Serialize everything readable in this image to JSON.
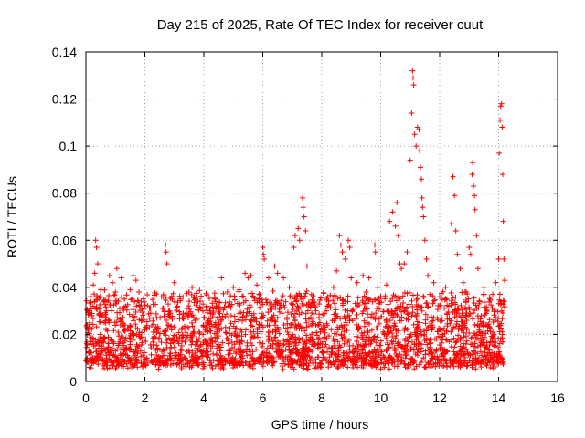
{
  "chart_data": {
    "type": "scatter",
    "title": "Day 215 of 2025, Rate Of TEC Index for receiver cuut",
    "xlabel": "GPS time / hours",
    "ylabel": "ROTI / TECUs",
    "xlim": [
      0,
      16
    ],
    "ylim": [
      0,
      0.14
    ],
    "xticks": [
      0,
      2,
      4,
      6,
      8,
      10,
      12,
      14,
      16
    ],
    "yticks": [
      0,
      0.02,
      0.04,
      0.06,
      0.08,
      0.1,
      0.12,
      0.14
    ],
    "xtick_labels": [
      "0",
      "2",
      "4",
      "6",
      "8",
      "10",
      "12",
      "14",
      "16"
    ],
    "ytick_labels": [
      "0",
      "0.02",
      "0.04",
      "0.06",
      "0.08",
      "0.1",
      "0.12",
      "0.14"
    ],
    "grid": true,
    "marker": "plus",
    "color": "#ff0000",
    "data_range_hours": [
      0,
      14.2
    ],
    "baseline_band": [
      0.005,
      0.035
    ],
    "series": [
      {
        "name": "ROTI",
        "points": [
          [
            0.05,
            0.024
          ],
          [
            0.1,
            0.012
          ],
          [
            0.15,
            0.036
          ],
          [
            0.2,
            0.028
          ],
          [
            0.25,
            0.041
          ],
          [
            0.3,
            0.046
          ],
          [
            0.33,
            0.06
          ],
          [
            0.36,
            0.057
          ],
          [
            0.4,
            0.05
          ],
          [
            0.5,
            0.039
          ],
          [
            0.6,
            0.034
          ],
          [
            0.7,
            0.03
          ],
          [
            0.8,
            0.045
          ],
          [
            0.9,
            0.042
          ],
          [
            1.0,
            0.038
          ],
          [
            1.05,
            0.048
          ],
          [
            1.2,
            0.044
          ],
          [
            1.35,
            0.032
          ],
          [
            1.5,
            0.039
          ],
          [
            1.6,
            0.045
          ],
          [
            1.7,
            0.043
          ],
          [
            1.8,
            0.038
          ],
          [
            1.9,
            0.026
          ],
          [
            2.0,
            0.022
          ],
          [
            2.2,
            0.029
          ],
          [
            2.4,
            0.027
          ],
          [
            2.6,
            0.031
          ],
          [
            2.7,
            0.058
          ],
          [
            2.72,
            0.055
          ],
          [
            2.75,
            0.05
          ],
          [
            3.0,
            0.042
          ],
          [
            3.2,
            0.035
          ],
          [
            3.3,
            0.029
          ],
          [
            3.5,
            0.038
          ],
          [
            3.6,
            0.04
          ],
          [
            3.8,
            0.034
          ],
          [
            3.9,
            0.031
          ],
          [
            4.0,
            0.027
          ],
          [
            4.2,
            0.03
          ],
          [
            4.4,
            0.034
          ],
          [
            4.6,
            0.044
          ],
          [
            4.8,
            0.038
          ],
          [
            5.0,
            0.04
          ],
          [
            5.2,
            0.039
          ],
          [
            5.4,
            0.046
          ],
          [
            5.5,
            0.044
          ],
          [
            5.6,
            0.045
          ],
          [
            5.8,
            0.041
          ],
          [
            6.0,
            0.057
          ],
          [
            6.02,
            0.054
          ],
          [
            6.05,
            0.052
          ],
          [
            6.2,
            0.044
          ],
          [
            6.4,
            0.049
          ],
          [
            6.5,
            0.046
          ],
          [
            6.7,
            0.044
          ],
          [
            6.9,
            0.04
          ],
          [
            7.0,
            0.036
          ],
          [
            7.05,
            0.057
          ],
          [
            7.1,
            0.062
          ],
          [
            7.2,
            0.065
          ],
          [
            7.25,
            0.06
          ],
          [
            7.35,
            0.078
          ],
          [
            7.37,
            0.074
          ],
          [
            7.4,
            0.07
          ],
          [
            7.45,
            0.064
          ],
          [
            7.5,
            0.049
          ],
          [
            7.6,
            0.032
          ],
          [
            7.8,
            0.024
          ],
          [
            8.0,
            0.022
          ],
          [
            8.2,
            0.032
          ],
          [
            8.4,
            0.04
          ],
          [
            8.5,
            0.047
          ],
          [
            8.6,
            0.062
          ],
          [
            8.65,
            0.058
          ],
          [
            8.7,
            0.055
          ],
          [
            8.8,
            0.052
          ],
          [
            8.9,
            0.06
          ],
          [
            8.95,
            0.057
          ],
          [
            9.0,
            0.044
          ],
          [
            9.2,
            0.042
          ],
          [
            9.4,
            0.045
          ],
          [
            9.5,
            0.038
          ],
          [
            9.6,
            0.044
          ],
          [
            9.8,
            0.058
          ],
          [
            9.82,
            0.055
          ],
          [
            9.9,
            0.04
          ],
          [
            10.0,
            0.036
          ],
          [
            10.2,
            0.041
          ],
          [
            10.3,
            0.068
          ],
          [
            10.4,
            0.072
          ],
          [
            10.5,
            0.066
          ],
          [
            10.55,
            0.076
          ],
          [
            10.6,
            0.062
          ],
          [
            10.65,
            0.05
          ],
          [
            10.7,
            0.048
          ],
          [
            10.8,
            0.05
          ],
          [
            10.9,
            0.055
          ],
          [
            11.0,
            0.094
          ],
          [
            11.05,
            0.114
          ],
          [
            11.08,
            0.132
          ],
          [
            11.1,
            0.129
          ],
          [
            11.12,
            0.126
          ],
          [
            11.15,
            0.105
          ],
          [
            11.2,
            0.1
          ],
          [
            11.25,
            0.108
          ],
          [
            11.3,
            0.107
          ],
          [
            11.32,
            0.098
          ],
          [
            11.35,
            0.091
          ],
          [
            11.38,
            0.086
          ],
          [
            11.4,
            0.078
          ],
          [
            11.42,
            0.074
          ],
          [
            11.45,
            0.07
          ],
          [
            11.5,
            0.06
          ],
          [
            11.55,
            0.052
          ],
          [
            11.6,
            0.045
          ],
          [
            11.8,
            0.042
          ],
          [
            12.0,
            0.036
          ],
          [
            12.2,
            0.04
          ],
          [
            12.4,
            0.067
          ],
          [
            12.45,
            0.087
          ],
          [
            12.5,
            0.079
          ],
          [
            12.55,
            0.064
          ],
          [
            12.6,
            0.054
          ],
          [
            12.7,
            0.048
          ],
          [
            12.8,
            0.042
          ],
          [
            12.9,
            0.038
          ],
          [
            13.0,
            0.057
          ],
          [
            13.05,
            0.054
          ],
          [
            13.1,
            0.088
          ],
          [
            13.12,
            0.093
          ],
          [
            13.15,
            0.083
          ],
          [
            13.18,
            0.079
          ],
          [
            13.2,
            0.073
          ],
          [
            13.25,
            0.062
          ],
          [
            13.3,
            0.048
          ],
          [
            13.5,
            0.04
          ],
          [
            13.7,
            0.035
          ],
          [
            13.8,
            0.037
          ],
          [
            13.9,
            0.042
          ],
          [
            14.0,
            0.052
          ],
          [
            14.02,
            0.097
          ],
          [
            14.05,
            0.111
          ],
          [
            14.07,
            0.117
          ],
          [
            14.1,
            0.118
          ],
          [
            14.12,
            0.108
          ],
          [
            14.14,
            0.088
          ],
          [
            14.16,
            0.068
          ],
          [
            14.18,
            0.052
          ],
          [
            14.2,
            0.043
          ]
        ]
      }
    ]
  }
}
